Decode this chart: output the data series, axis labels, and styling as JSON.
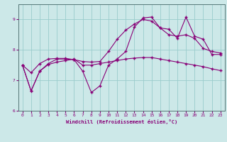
{
  "xlabel": "Windchill (Refroidissement éolien,°C)",
  "xlim": [
    -0.5,
    23.5
  ],
  "ylim": [
    6,
    9.5
  ],
  "yticks": [
    6,
    7,
    8,
    9
  ],
  "xticks": [
    0,
    1,
    2,
    3,
    4,
    5,
    6,
    7,
    8,
    9,
    10,
    11,
    12,
    13,
    14,
    15,
    16,
    17,
    18,
    19,
    20,
    21,
    22,
    23
  ],
  "bg_color": "#cce8e8",
  "line_color": "#880077",
  "grid_color": "#99cccc",
  "line1_x": [
    0,
    1,
    2,
    3,
    4,
    5,
    6,
    7,
    8,
    9,
    10,
    11,
    12,
    13,
    14,
    15,
    16,
    17,
    18,
    19,
    20,
    21,
    22,
    23
  ],
  "line1_y": [
    7.5,
    6.65,
    7.3,
    7.52,
    7.6,
    7.65,
    7.7,
    7.5,
    7.5,
    7.55,
    7.6,
    7.65,
    7.7,
    7.73,
    7.75,
    7.75,
    7.7,
    7.65,
    7.6,
    7.55,
    7.5,
    7.45,
    7.38,
    7.32
  ],
  "line2_x": [
    0,
    1,
    2,
    3,
    4,
    5,
    6,
    7,
    8,
    9,
    10,
    11,
    12,
    13,
    14,
    15,
    16,
    17,
    18,
    19,
    20,
    21,
    22,
    23
  ],
  "line2_y": [
    7.5,
    7.25,
    7.55,
    7.7,
    7.72,
    7.72,
    7.68,
    7.62,
    7.6,
    7.62,
    7.95,
    8.35,
    8.65,
    8.85,
    9.0,
    8.95,
    8.72,
    8.5,
    8.45,
    8.5,
    8.38,
    8.05,
    7.95,
    7.9
  ],
  "line3_x": [
    0,
    1,
    2,
    3,
    4,
    5,
    6,
    7,
    8,
    9,
    10,
    11,
    12,
    13,
    14,
    15,
    16,
    17,
    18,
    19,
    20,
    21,
    22,
    23
  ],
  "line3_y": [
    7.5,
    6.65,
    7.3,
    7.55,
    7.7,
    7.7,
    7.68,
    7.3,
    6.6,
    6.82,
    7.5,
    7.7,
    7.95,
    8.75,
    9.05,
    9.08,
    8.72,
    8.68,
    8.38,
    9.08,
    8.45,
    8.35,
    7.85,
    7.85
  ]
}
